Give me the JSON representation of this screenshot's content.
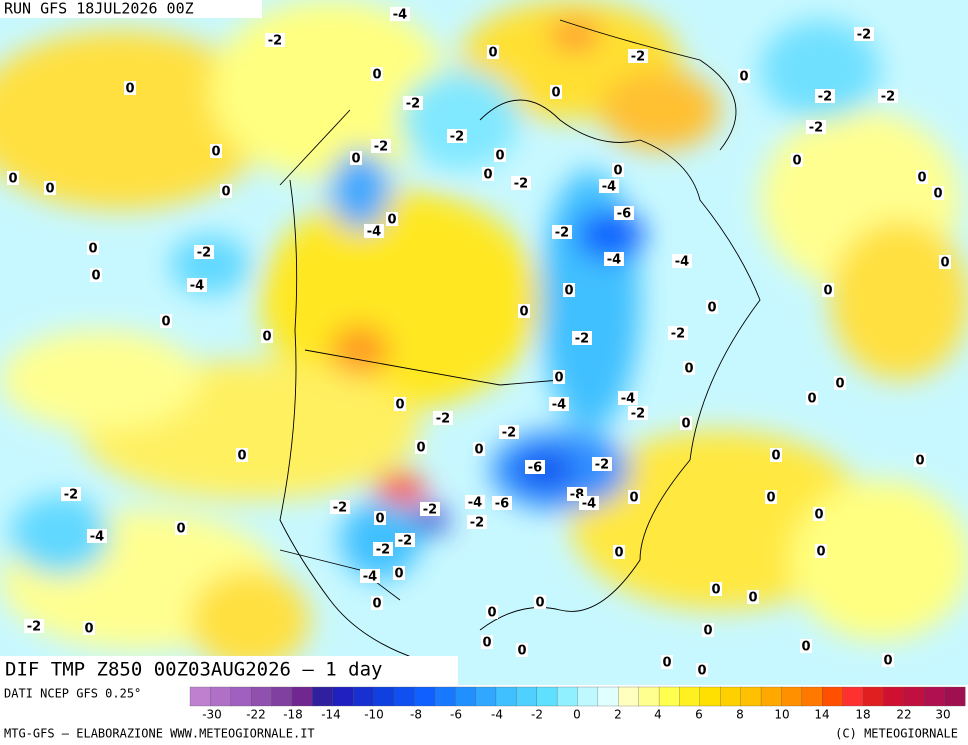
{
  "header": {
    "run": "RUN GFS 18JUL2026 00Z"
  },
  "title": "DIF TMP Z850 00Z03AUG2026 – 1 day",
  "source": "DATI NCEP GFS 0.25°",
  "footer_left": "MTG-GFS – ELABORAZIONE WWW.METEOGIORNALE.IT",
  "footer_right": "(C) METEOGIORNALE",
  "colorbar": {
    "colors": [
      "#c080d0",
      "#b070c8",
      "#a060c0",
      "#9050b0",
      "#8040a0",
      "#702890",
      "#3020a0",
      "#2020c0",
      "#1830d0",
      "#1040e0",
      "#1050f0",
      "#1060ff",
      "#1878ff",
      "#2090ff",
      "#30a8ff",
      "#40c0ff",
      "#50d0ff",
      "#60e0ff",
      "#90f0ff",
      "#c0f8ff",
      "#e0ffff",
      "#ffffc0",
      "#ffff90",
      "#ffff50",
      "#fff020",
      "#ffe000",
      "#ffd000",
      "#ffc000",
      "#ffa800",
      "#ff9000",
      "#ff7800",
      "#ff5000",
      "#ff3030",
      "#e02020",
      "#d01030",
      "#c01040",
      "#b01050",
      "#a01050"
    ],
    "ticks": [
      -30,
      -22,
      -18,
      -14,
      -10,
      -8,
      -6,
      -4,
      -2,
      0,
      2,
      4,
      6,
      8,
      10,
      14,
      18,
      22,
      30
    ]
  },
  "map": {
    "labels": [
      -4,
      -2,
      0,
      0,
      0,
      -2,
      0,
      0,
      -2,
      -2,
      -2,
      -2,
      -2,
      -2,
      -2,
      0,
      0,
      0,
      0,
      0,
      0,
      0,
      0,
      0,
      -2,
      -4,
      0,
      0,
      0,
      -4,
      -6,
      -2,
      0,
      -2,
      -4,
      -4,
      0,
      -4,
      0,
      0,
      0,
      0,
      0,
      0,
      0,
      -2,
      -2,
      0,
      0,
      0,
      0,
      0,
      -4,
      -4,
      -2,
      -2,
      0,
      -2,
      0,
      0,
      0,
      0,
      -6,
      -2,
      0,
      -2,
      -4,
      -6,
      -8,
      -4,
      0,
      0,
      -2,
      -2,
      0,
      0,
      -2,
      0,
      -4,
      -2,
      -2,
      0,
      0,
      -4,
      0,
      0,
      0,
      0,
      0,
      0,
      -2,
      0,
      0,
      0,
      0,
      0,
      0,
      0,
      0
    ]
  }
}
